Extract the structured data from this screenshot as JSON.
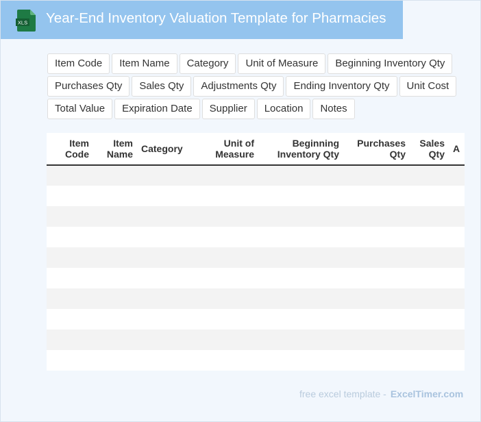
{
  "header": {
    "icon_label": "XLS",
    "title": "Year-End Inventory Valuation Template for Pharmacies"
  },
  "fields": [
    "Item Code",
    "Item Name",
    "Category",
    "Unit of Measure",
    "Beginning Inventory Qty",
    "Purchases Qty",
    "Sales Qty",
    "Adjustments Qty",
    "Ending Inventory Qty",
    "Unit Cost",
    "Total Value",
    "Expiration Date",
    "Supplier",
    "Location",
    "Notes"
  ],
  "table": {
    "columns": [
      {
        "line1": "Item",
        "line2": "Code"
      },
      {
        "line1": "Item",
        "line2": "Name"
      },
      {
        "line1": "Category",
        "line2": ""
      },
      {
        "line1": "Unit of",
        "line2": "Measure"
      },
      {
        "line1": "Beginning",
        "line2": "Inventory Qty"
      },
      {
        "line1": "Purchases",
        "line2": "Qty"
      },
      {
        "line1": "Sales",
        "line2": "Qty"
      },
      {
        "line1": "A",
        "line2": ""
      }
    ],
    "empty_rows": 10
  },
  "footer": {
    "text": "free excel template -",
    "brand": "ExcelTimer.com"
  },
  "colors": {
    "title_bar": "#94c4ee",
    "icon_green": "#1e7a44",
    "page_bg": "#f2f7fd",
    "stripe": "#f3f3f3"
  }
}
